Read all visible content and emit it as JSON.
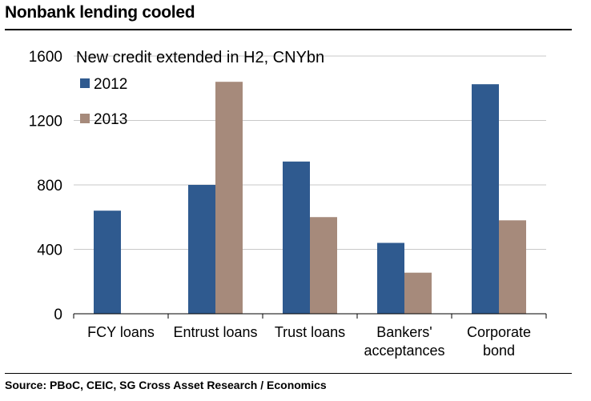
{
  "header": {
    "title": "Nonbank lending cooled"
  },
  "footer": {
    "source": "Source: PBoC, CEIC, SG Cross Asset Research / Economics"
  },
  "chart_data": {
    "type": "bar",
    "title": "New credit extended in H2, CNYbn",
    "categories": [
      [
        "FCY loans"
      ],
      [
        "Entrust loans"
      ],
      [
        "Trust loans"
      ],
      [
        "Bankers'",
        "acceptances"
      ],
      [
        "Corporate",
        "bond"
      ]
    ],
    "series": [
      {
        "name": "2012",
        "color": "#2f5a8f",
        "values": [
          640,
          800,
          945,
          440,
          1425
        ]
      },
      {
        "name": "2013",
        "color": "#a68a7b",
        "values": [
          0,
          1440,
          600,
          255,
          580
        ]
      }
    ],
    "ylim": [
      0,
      1600
    ],
    "yticks": [
      0,
      400,
      800,
      1200,
      1600
    ],
    "grid": true,
    "legend_position": "top-left"
  }
}
